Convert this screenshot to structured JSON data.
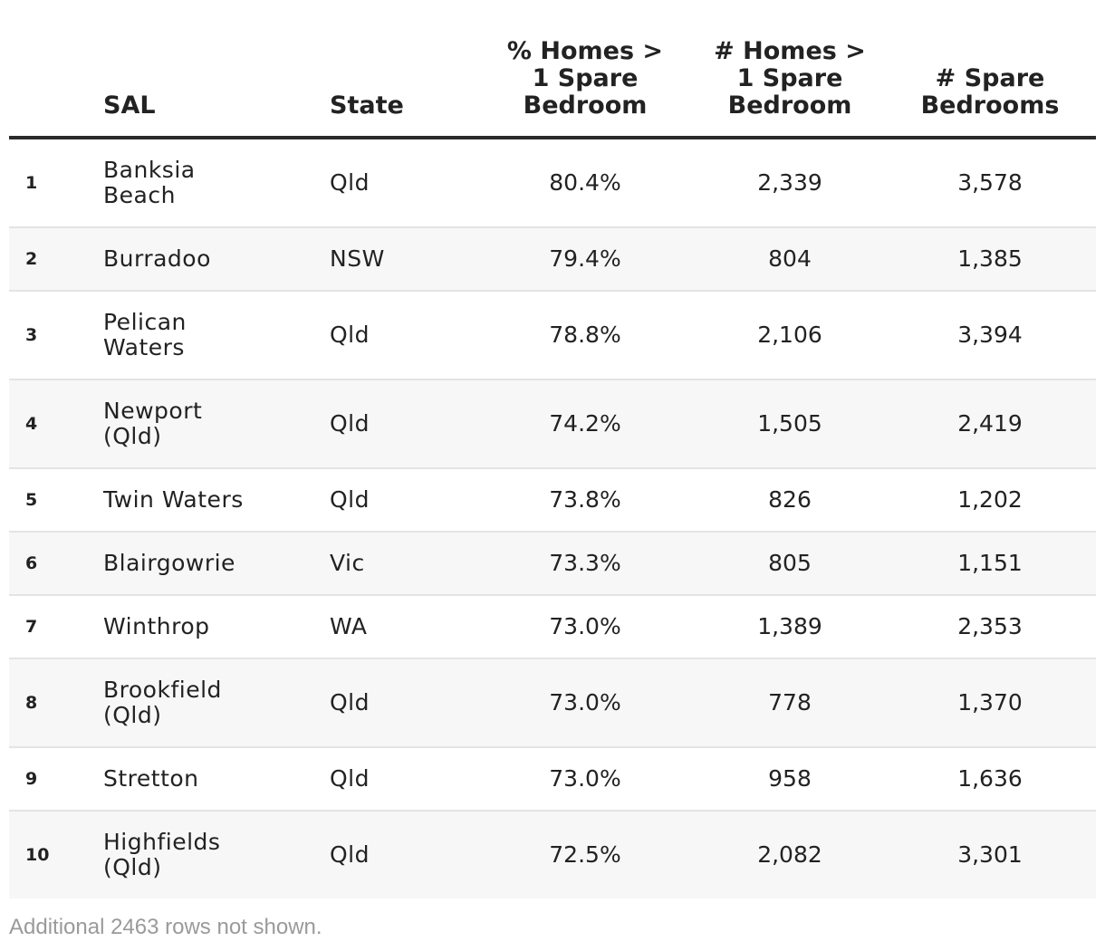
{
  "chart_data": {
    "type": "table",
    "columns": [
      {
        "key": "rank",
        "label": ""
      },
      {
        "key": "sal",
        "label": "SAL"
      },
      {
        "key": "state",
        "label": "State"
      },
      {
        "key": "pct",
        "label": "% Homes > 1 Spare Bedroom",
        "lines": [
          "% Homes >",
          "1 Spare",
          "Bedroom"
        ]
      },
      {
        "key": "homes",
        "label": "# Homes > 1 Spare Bedroom",
        "lines": [
          "# Homes >",
          "1 Spare",
          "Bedroom"
        ]
      },
      {
        "key": "spare",
        "label": "# Spare Bedrooms",
        "lines": [
          "# Spare",
          "Bedrooms"
        ]
      }
    ],
    "rows": [
      {
        "rank": "1",
        "sal": "Banksia Beach",
        "state": "Qld",
        "pct": "80.4%",
        "homes": "2,339",
        "spare": "3,578"
      },
      {
        "rank": "2",
        "sal": "Burradoo",
        "state": "NSW",
        "pct": "79.4%",
        "homes": "804",
        "spare": "1,385"
      },
      {
        "rank": "3",
        "sal": "Pelican Waters",
        "state": "Qld",
        "pct": "78.8%",
        "homes": "2,106",
        "spare": "3,394"
      },
      {
        "rank": "4",
        "sal": "Newport (Qld)",
        "state": "Qld",
        "pct": "74.2%",
        "homes": "1,505",
        "spare": "2,419"
      },
      {
        "rank": "5",
        "sal": "Twin Waters",
        "state": "Qld",
        "pct": "73.8%",
        "homes": "826",
        "spare": "1,202"
      },
      {
        "rank": "6",
        "sal": "Blairgowrie",
        "state": "Vic",
        "pct": "73.3%",
        "homes": "805",
        "spare": "1,151"
      },
      {
        "rank": "7",
        "sal": "Winthrop",
        "state": "WA",
        "pct": "73.0%",
        "homes": "1,389",
        "spare": "2,353"
      },
      {
        "rank": "8",
        "sal": "Brookfield (Qld)",
        "state": "Qld",
        "pct": "73.0%",
        "homes": "778",
        "spare": "1,370"
      },
      {
        "rank": "9",
        "sal": "Stretton",
        "state": "Qld",
        "pct": "73.0%",
        "homes": "958",
        "spare": "1,636"
      },
      {
        "rank": "10",
        "sal": "Highfields (Qld)",
        "state": "Qld",
        "pct": "72.5%",
        "homes": "2,082",
        "spare": "3,301"
      }
    ],
    "footnote": "Additional 2463 rows not shown."
  }
}
